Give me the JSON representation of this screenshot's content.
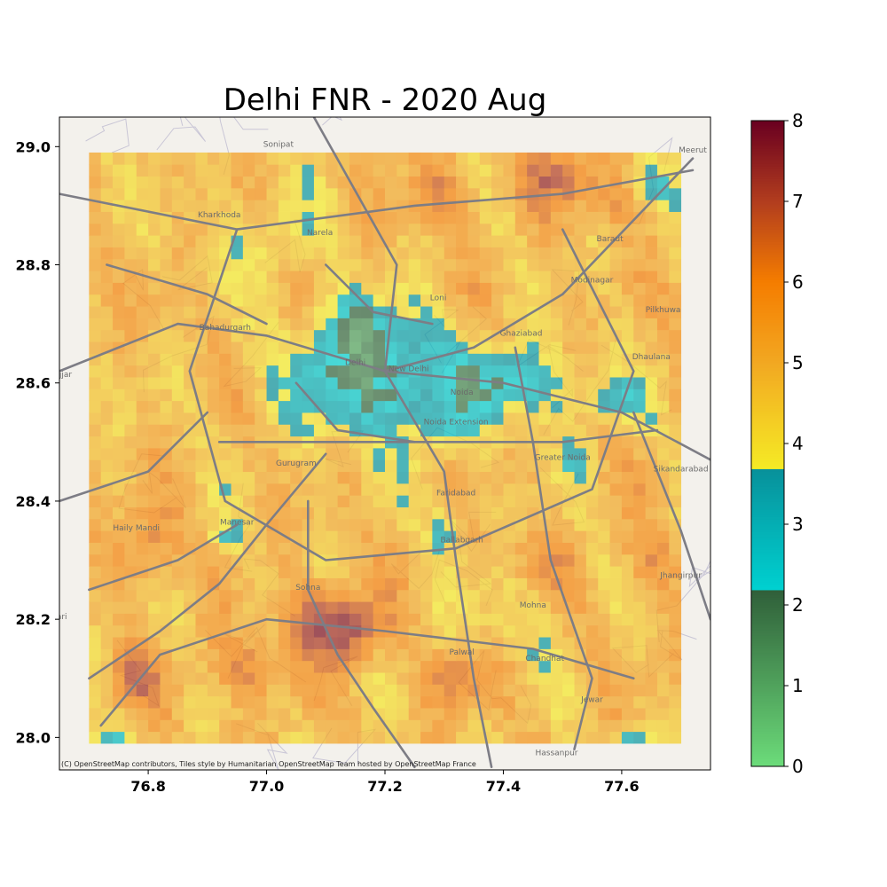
{
  "chart_data": {
    "type": "heatmap",
    "title": "Delhi FNR - 2020 Aug",
    "xlabel": "",
    "ylabel": "",
    "xlim": [
      76.65,
      77.75
    ],
    "ylim": [
      27.945,
      29.05
    ],
    "x_ticks": [
      76.8,
      77.0,
      77.2,
      77.4,
      77.6
    ],
    "x_tick_labels": [
      "76.8",
      "77.0",
      "77.2",
      "77.4",
      "77.6"
    ],
    "y_ticks": [
      28.0,
      28.2,
      28.4,
      28.6,
      28.8,
      29.0
    ],
    "y_tick_labels": [
      "28.0",
      "28.2",
      "28.4",
      "28.6",
      "28.8",
      "29.0"
    ],
    "grid_extent": {
      "lon": [
        76.7,
        77.705
      ],
      "lat": [
        27.99,
        28.995
      ]
    },
    "grid_resolution_deg": 0.02,
    "colorbar": {
      "range": [
        0,
        8
      ],
      "ticks": [
        0,
        1,
        2,
        3,
        4,
        5,
        6,
        7,
        8
      ],
      "tick_labels": [
        "0",
        "1",
        "2",
        "3",
        "4",
        "5",
        "6",
        "7",
        "8"
      ],
      "segments": [
        {
          "from": 0.0,
          "to": 2.2,
          "colors": [
            "#6cdc7a",
            "#2f5e39"
          ]
        },
        {
          "from": 2.2,
          "to": 3.7,
          "colors": [
            "#00d0d0",
            "#08909a"
          ]
        },
        {
          "from": 3.7,
          "to": 5.0,
          "colors": [
            "#f5ea25",
            "#f2a822"
          ]
        },
        {
          "from": 5.0,
          "to": 8.0,
          "colors": [
            "#f2a822",
            "#f57d00",
            "#b23d1e",
            "#6a0020"
          ]
        }
      ]
    },
    "overlay_alpha": 0.7,
    "basemap_attribution": "(C) OpenStreetMap contributors, Tiles style by Humanitarian OpenStreetMap Team hosted by OpenStreetMap France",
    "place_labels": [
      {
        "name": "Sonipat",
        "lon": 77.02,
        "lat": 29.0
      },
      {
        "name": "Meerut",
        "lon": 77.72,
        "lat": 28.99
      },
      {
        "name": "Kharkhoda",
        "lon": 76.92,
        "lat": 28.88
      },
      {
        "name": "Narela",
        "lon": 77.09,
        "lat": 28.85
      },
      {
        "name": "Baraut",
        "lon": 77.58,
        "lat": 28.84
      },
      {
        "name": "Modinagar",
        "lon": 77.55,
        "lat": 28.77
      },
      {
        "name": "Loni",
        "lon": 77.29,
        "lat": 28.74
      },
      {
        "name": "Bahadurgarh",
        "lon": 76.93,
        "lat": 28.69
      },
      {
        "name": "Pilkhuwa",
        "lon": 77.67,
        "lat": 28.72
      },
      {
        "name": "Ghaziabad",
        "lon": 77.43,
        "lat": 28.68
      },
      {
        "name": "Dhaulana",
        "lon": 77.65,
        "lat": 28.64
      },
      {
        "name": "Jhajjar",
        "lon": 76.65,
        "lat": 28.61
      },
      {
        "name": "Delhi",
        "lon": 77.15,
        "lat": 28.63
      },
      {
        "name": "New Delhi",
        "lon": 77.24,
        "lat": 28.62
      },
      {
        "name": "Noida",
        "lon": 77.33,
        "lat": 28.58
      },
      {
        "name": "Noida Extension",
        "lon": 77.32,
        "lat": 28.53
      },
      {
        "name": "Greater Noida",
        "lon": 77.5,
        "lat": 28.47
      },
      {
        "name": "Gurugram",
        "lon": 77.05,
        "lat": 28.46
      },
      {
        "name": "Sikandarabad",
        "lon": 77.7,
        "lat": 28.45
      },
      {
        "name": "Faridabad",
        "lon": 77.32,
        "lat": 28.41
      },
      {
        "name": "Manesar",
        "lon": 76.95,
        "lat": 28.36
      },
      {
        "name": "Ballabgarh",
        "lon": 77.33,
        "lat": 28.33
      },
      {
        "name": "Haily Mandi",
        "lon": 76.78,
        "lat": 28.35
      },
      {
        "name": "Sohna",
        "lon": 77.07,
        "lat": 28.25
      },
      {
        "name": "Jhangirpur",
        "lon": 77.7,
        "lat": 28.27
      },
      {
        "name": "Mohna",
        "lon": 77.45,
        "lat": 28.22
      },
      {
        "name": "Rewari",
        "lon": 76.64,
        "lat": 28.2
      },
      {
        "name": "Palwal",
        "lon": 77.33,
        "lat": 28.14
      },
      {
        "name": "Chandhat",
        "lon": 77.47,
        "lat": 28.13
      },
      {
        "name": "Jewar",
        "lon": 77.55,
        "lat": 28.06
      },
      {
        "name": "Hassanpur",
        "lon": 77.49,
        "lat": 27.97
      }
    ]
  }
}
